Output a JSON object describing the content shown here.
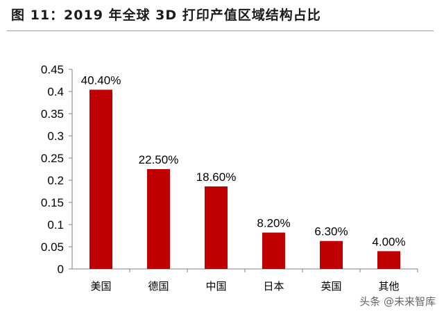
{
  "header": {
    "title": "图 11：2019 年全球 3D 打印产值区域结构占比"
  },
  "watermark": "头条 @未来智库",
  "chart_data": {
    "type": "bar",
    "categories": [
      "美国",
      "德国",
      "中国",
      "日本",
      "英国",
      "其他"
    ],
    "series": [
      {
        "values": [
          0.404,
          0.225,
          0.186,
          0.082,
          0.063,
          0.04
        ],
        "data_labels": [
          "40.40%",
          "22.50%",
          "18.60%",
          "8.20%",
          "6.30%",
          "4.00%"
        ]
      }
    ],
    "yticks": [
      "0",
      "0.05",
      "0.1",
      "0.15",
      "0.2",
      "0.25",
      "0.3",
      "0.35",
      "0.4",
      "0.45"
    ],
    "ylim": [
      0,
      0.45
    ],
    "grid": false,
    "legend": "none",
    "bar_color": "#c00000"
  }
}
